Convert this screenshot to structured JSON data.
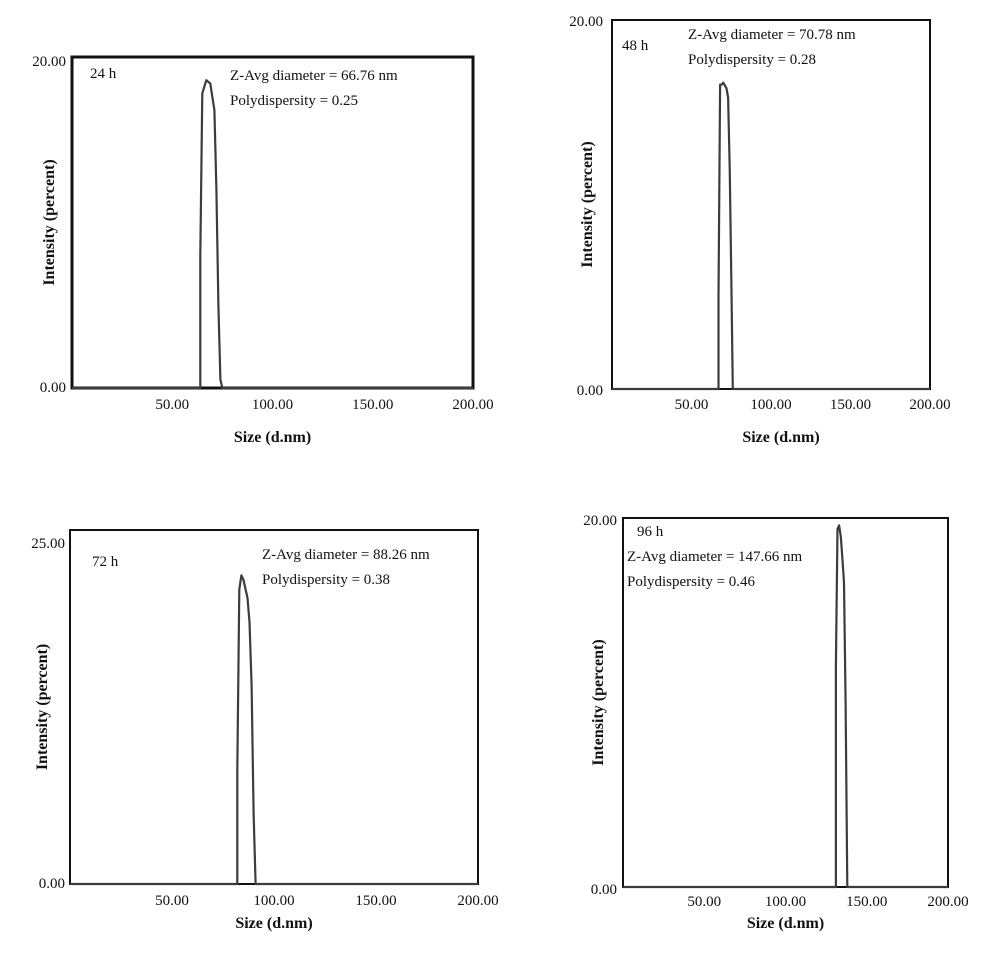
{
  "colors": {
    "frame": "#111111",
    "trace": "#3c3c3c",
    "background": "#ffffff"
  },
  "chart_data": [
    {
      "type": "line",
      "panel_label": "24 h",
      "annotation_1": "Z-Avg diameter = 66.76 nm",
      "annotation_2": "Polydispersity = 0.25",
      "xlabel": "Size (d.nm)",
      "ylabel": "Intensity (percent)",
      "xlim": [
        0,
        200
      ],
      "ylim": [
        0,
        20
      ],
      "x_ticks": [
        "50.00",
        "100.00",
        "150.00",
        "200.00"
      ],
      "y_ticks": [
        "0.00",
        "20.00"
      ],
      "x": [
        0,
        64,
        64,
        65,
        67,
        69,
        70,
        71,
        72,
        73,
        74,
        75,
        200
      ],
      "y": [
        0,
        0,
        8,
        17.8,
        18.6,
        18.4,
        17.6,
        16.8,
        12,
        5,
        0.5,
        0,
        0
      ]
    },
    {
      "type": "line",
      "panel_label": "48 h",
      "annotation_1": "Z-Avg diameter = 70.78 nm",
      "annotation_2": "Polydispersity = 0.28",
      "xlabel": "Size (d.nm)",
      "ylabel": "Intensity (percent)",
      "xlim": [
        0,
        200
      ],
      "ylim": [
        0,
        20
      ],
      "x_ticks": [
        "50.00",
        "100.00",
        "150.00",
        "200.00"
      ],
      "y_ticks": [
        "0.00",
        "20.00"
      ],
      "x": [
        0,
        67,
        67,
        68,
        69,
        70,
        72,
        73,
        74,
        75,
        76,
        200
      ],
      "y": [
        0,
        0,
        5,
        16.5,
        16.5,
        16.6,
        16.3,
        15.8,
        12,
        6,
        0,
        0
      ]
    },
    {
      "type": "line",
      "panel_label": "72 h",
      "annotation_1": "Z-Avg diameter = 88.26 nm",
      "annotation_2": "Polydispersity = 0.38",
      "xlabel": "Size (d.nm)",
      "ylabel": "Intensity (percent)",
      "xlim": [
        0,
        200
      ],
      "ylim": [
        0,
        25
      ],
      "x_ticks": [
        "50.00",
        "100.00",
        "150.00",
        "200.00"
      ],
      "y_ticks": [
        "0.00",
        "25.00"
      ],
      "x": [
        0,
        82,
        82,
        83,
        84,
        85,
        87,
        88,
        89,
        90,
        91,
        200
      ],
      "y": [
        0,
        0,
        8,
        20.8,
        21.8,
        21.5,
        20.2,
        18.5,
        14,
        5,
        0,
        0
      ]
    },
    {
      "type": "line",
      "panel_label": "96 h",
      "annotation_1": "Z-Avg diameter = 147.66 nm",
      "annotation_2": "Polydispersity = 0.46",
      "xlabel": "Size (d.nm)",
      "ylabel": "Intensity (percent)",
      "xlim": [
        0,
        200
      ],
      "ylim": [
        0,
        20
      ],
      "x_ticks": [
        "50.00",
        "100.00",
        "150.00",
        "200.00"
      ],
      "y_ticks": [
        "0.00",
        "20.00"
      ],
      "x": [
        0,
        131,
        131,
        132,
        133,
        134,
        135,
        136,
        137,
        138,
        200
      ],
      "y": [
        0,
        0,
        12,
        19.4,
        19.6,
        19.0,
        17.8,
        16.5,
        10,
        0,
        0
      ]
    }
  ]
}
